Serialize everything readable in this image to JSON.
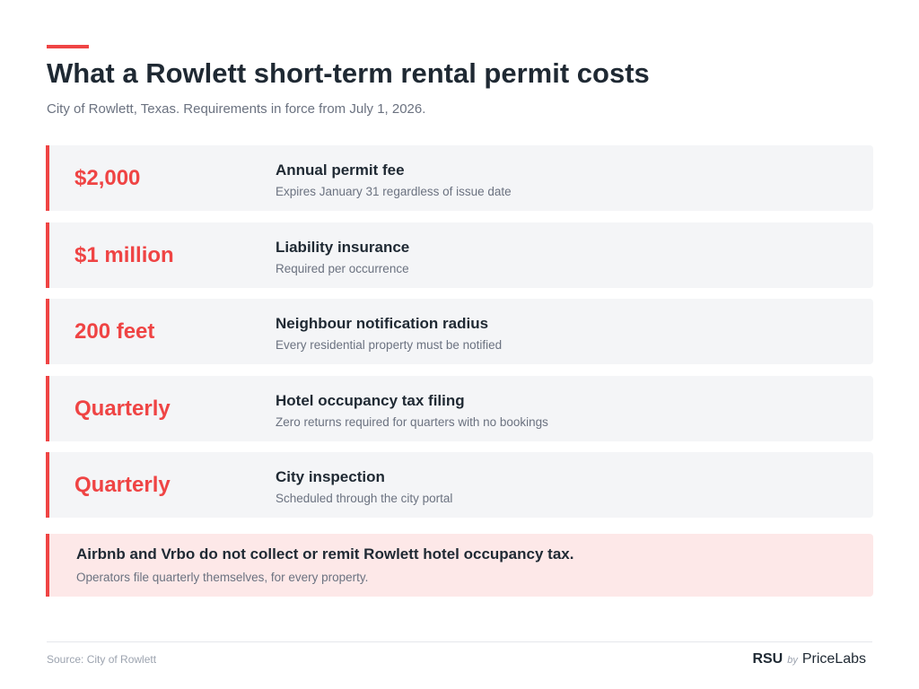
{
  "header": {
    "title": "What a Rowlett short-term rental permit costs",
    "subtitle": "City of Rowlett, Texas. Requirements in force from July 1, 2026."
  },
  "cards": [
    {
      "value": "$2,000",
      "label": "Annual permit fee",
      "desc": "Expires January 31 regardless of issue date"
    },
    {
      "value": "$1 million",
      "label": "Liability insurance",
      "desc": "Required per occurrence"
    },
    {
      "value": "200 feet",
      "label": "Neighbour notification radius",
      "desc": "Every residential property must be notified"
    },
    {
      "value": "Quarterly",
      "label": "Hotel occupancy tax filing",
      "desc": "Zero returns required for quarters with no bookings"
    },
    {
      "value": "Quarterly",
      "label": "City inspection",
      "desc": "Scheduled through the city portal"
    }
  ],
  "callout": {
    "title": "Airbnb and Vrbo do not collect or remit Rowlett hotel occupancy tax.",
    "desc": "Operators file quarterly themselves, for every property."
  },
  "footer": {
    "source": "Source: City of Rowlett",
    "brand_rsu": "RSU",
    "brand_by": "by",
    "brand_pricelabs": "PriceLabs"
  },
  "colors": {
    "accent": "#ef4444",
    "card_bg": "#f4f5f7",
    "callout_bg": "#fde8e8"
  }
}
